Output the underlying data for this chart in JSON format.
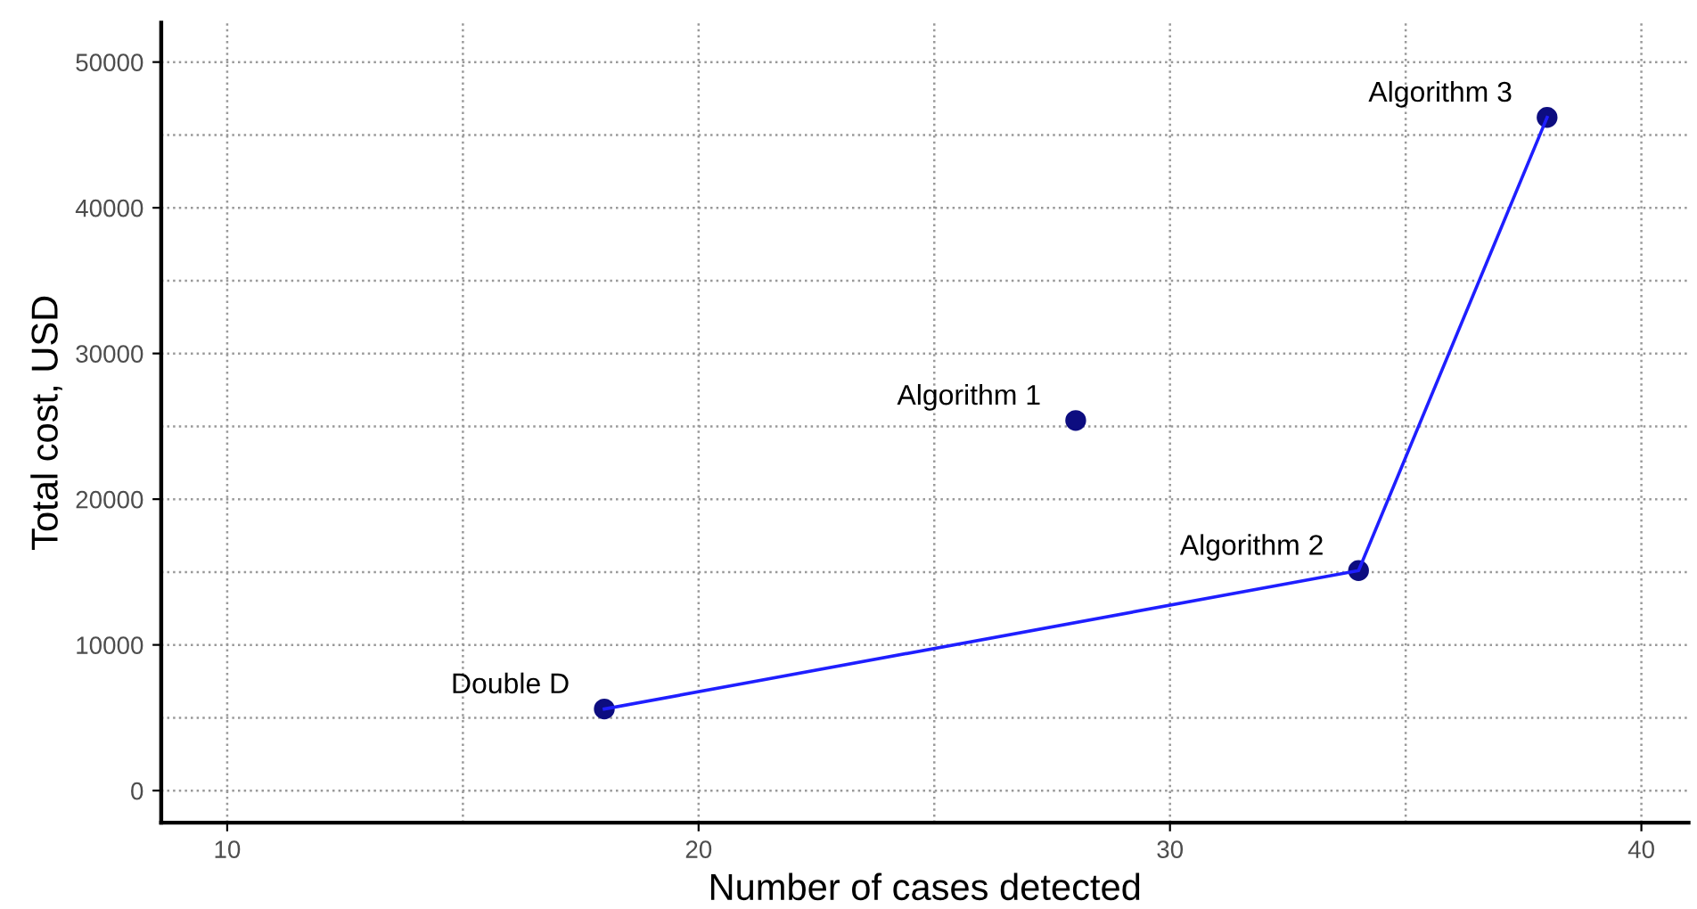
{
  "chart_data": {
    "type": "scatter",
    "xlabel": "Number of cases detected",
    "ylabel": "Total cost, USD",
    "series": [
      {
        "type": "line",
        "color": "#1f1fff",
        "x": [
          18,
          34,
          38
        ],
        "values": [
          5600,
          15100,
          46200
        ],
        "marker": "none",
        "line_style": "solid"
      },
      {
        "color": "#0d0d80",
        "x": [
          18,
          28,
          34,
          38
        ],
        "values": [
          5600,
          25400,
          15100,
          46200
        ]
      }
    ],
    "annotations": [
      {
        "text": "Double D",
        "x": 18,
        "y": 5600
      },
      {
        "text": "Algorithm 1",
        "x": 28,
        "y": 25400
      },
      {
        "text": "Algorithm 2",
        "x": 34,
        "y": 15100
      },
      {
        "text": "Algorithm 3",
        "x": 38,
        "y": 46200
      }
    ],
    "xlim": [
      8.6,
      41
    ],
    "xticks": [
      10,
      20,
      30,
      40
    ],
    "ylim": [
      -2200,
      52700
    ],
    "yticks": [
      0,
      10000,
      20000,
      30000,
      40000,
      50000
    ],
    "grid": true,
    "marker": "circle"
  }
}
